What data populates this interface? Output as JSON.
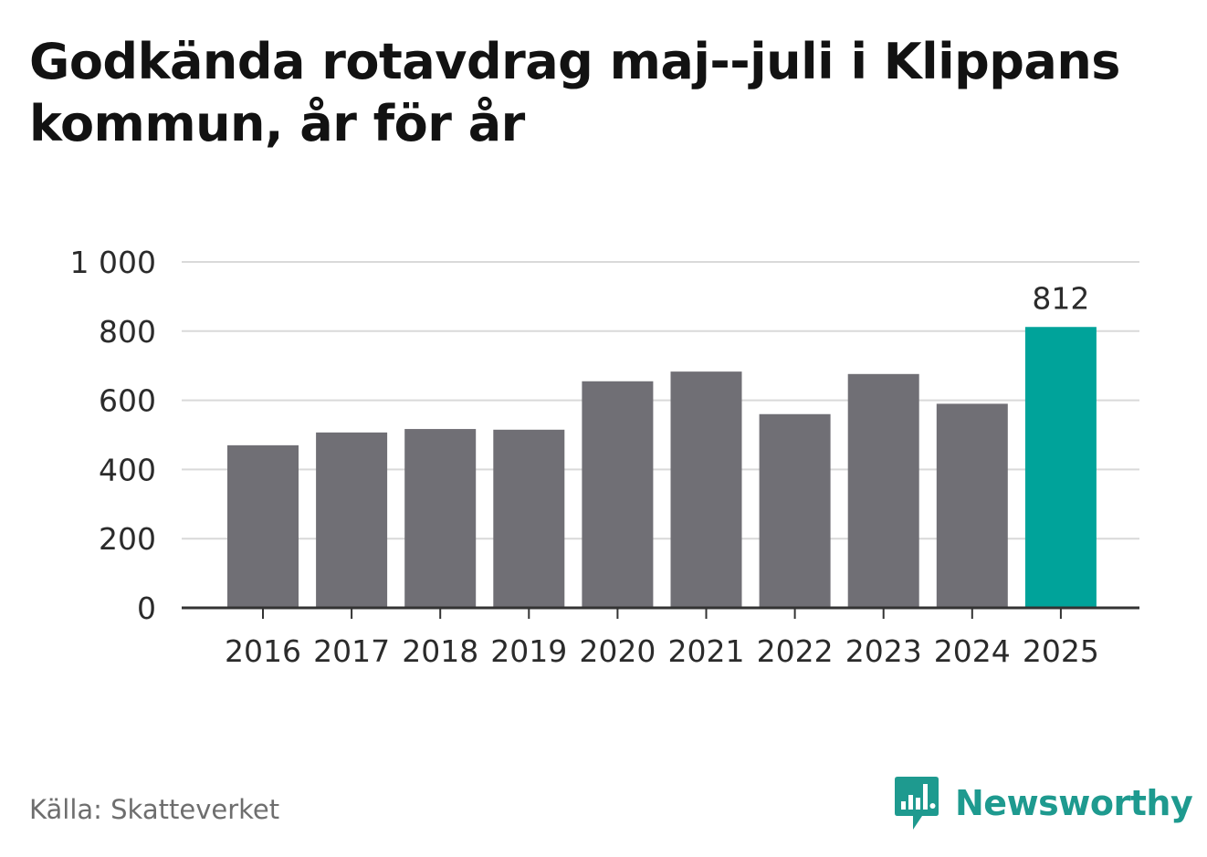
{
  "title": "Godkända rotavdrag maj--juli i Klippans kommun, år för år",
  "source": "Källa: Skatteverket",
  "brand": {
    "name": "Newsworthy",
    "icon": "newsworthy-logo-icon",
    "color": "#1e9a8f"
  },
  "colors": {
    "bar": "#706f75",
    "highlight": "#00a39a",
    "grid": "#d9d9d9",
    "axis": "#333333"
  },
  "chart_data": {
    "type": "bar",
    "title": "Godkända rotavdrag maj--juli i Klippans kommun, år för år",
    "xlabel": "",
    "ylabel": "",
    "ylim": [
      0,
      1000
    ],
    "y_ticks": [
      {
        "value": 0,
        "label": "0"
      },
      {
        "value": 200,
        "label": "200"
      },
      {
        "value": 400,
        "label": "400"
      },
      {
        "value": 600,
        "label": "600"
      },
      {
        "value": 800,
        "label": "800"
      },
      {
        "value": 1000,
        "label": "1 000"
      }
    ],
    "grid": true,
    "categories": [
      "2016",
      "2017",
      "2018",
      "2019",
      "2020",
      "2021",
      "2022",
      "2023",
      "2024",
      "2025"
    ],
    "values": [
      470,
      507,
      517,
      515,
      655,
      683,
      560,
      676,
      590,
      812
    ],
    "highlight_index": 9,
    "data_labels": [
      {
        "index": 9,
        "text": "812"
      }
    ]
  }
}
